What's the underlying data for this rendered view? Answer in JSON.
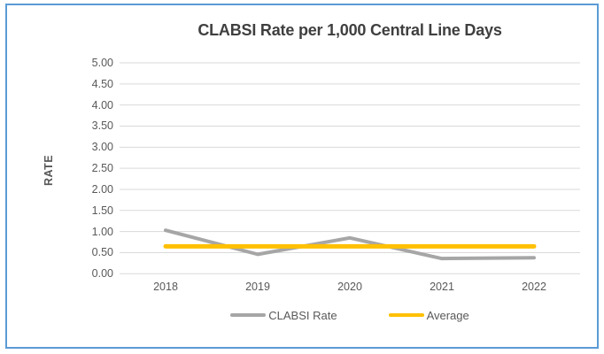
{
  "chart": {
    "title": "CLABSI Rate per 1,000 Central Line Days",
    "y_axis_label": "RATE"
  },
  "legend": [
    {
      "label": "CLABSI Rate",
      "color": "#a6a6a6"
    },
    {
      "label": "Average",
      "color": "#ffc000"
    }
  ],
  "chart_data": {
    "type": "line",
    "title": "CLABSI Rate per 1,000 Central Line Days",
    "categories": [
      "2018",
      "2019",
      "2020",
      "2021",
      "2022"
    ],
    "series": [
      {
        "name": "CLABSI Rate",
        "color": "#a6a6a6",
        "values": [
          1.03,
          0.46,
          0.85,
          0.36,
          0.38
        ]
      },
      {
        "name": "Average",
        "color": "#ffc000",
        "values": [
          0.65,
          0.65,
          0.65,
          0.65,
          0.65
        ]
      }
    ],
    "xlabel": "",
    "ylabel": "RATE",
    "ylim": [
      0,
      5
    ],
    "yticks": [
      "5.00",
      "4.50",
      "4.00",
      "3.50",
      "3.00",
      "2.50",
      "2.00",
      "1.50",
      "1.00",
      "0.50",
      "0.00"
    ],
    "grid": true,
    "legend_position": "bottom"
  },
  "colors": {
    "frame_border": "#5b9bd5",
    "gridline": "#d9d9d9",
    "title_text": "#3f3f3f",
    "axis_text": "#595959",
    "background": "#ffffff"
  }
}
